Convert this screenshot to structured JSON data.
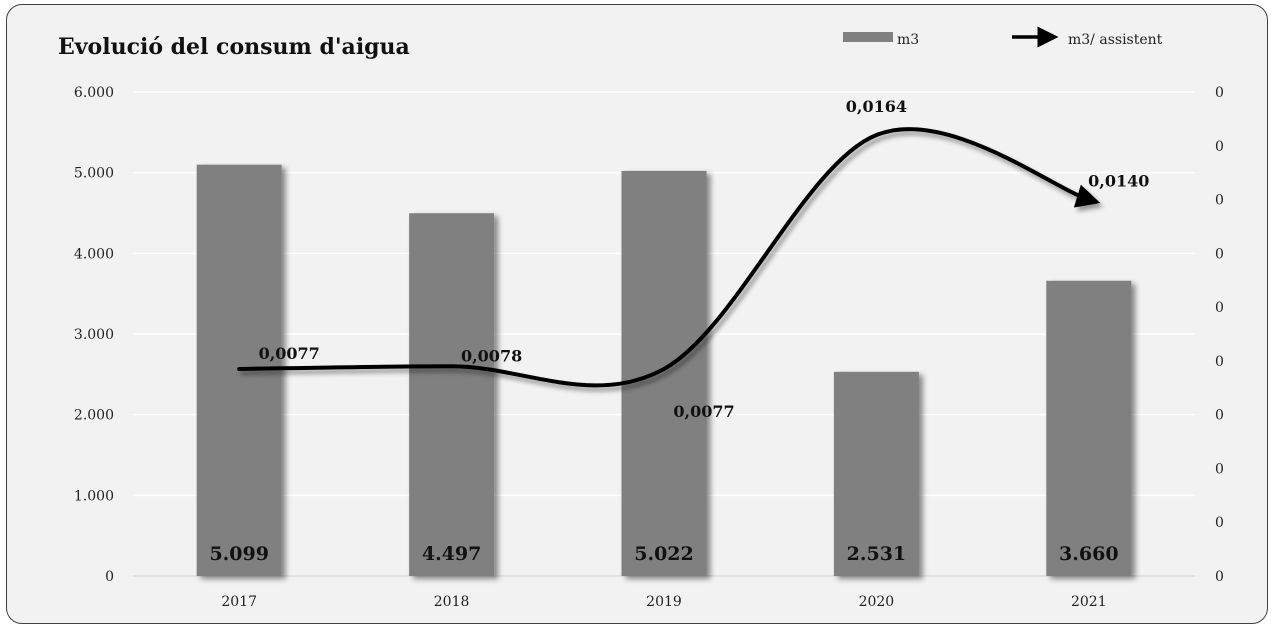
{
  "chart_data": {
    "type": "bar",
    "title": "Evolució del consum d'aigua",
    "categories": [
      "2017",
      "2018",
      "2019",
      "2020",
      "2021"
    ],
    "series": [
      {
        "name": "m3",
        "type": "bar",
        "axis": "left",
        "values": [
          5099,
          4497,
          5022,
          2531,
          3660
        ],
        "labels": [
          "5.099",
          "4.497",
          "5.022",
          "2.531",
          "3.660"
        ]
      },
      {
        "name": "m3/ assistent",
        "type": "line",
        "axis": "right",
        "values": [
          0.0077,
          0.0078,
          0.0077,
          0.0164,
          0.014
        ],
        "labels": [
          "0,0077",
          "0,0078",
          "0,0077",
          "0,0164",
          "0,0140"
        ]
      }
    ],
    "ylim": [
      0,
      6000
    ],
    "yticks": [
      "0",
      "1.000",
      "2.000",
      "3.000",
      "4.000",
      "5.000",
      "6.000"
    ],
    "y2ticks": [
      "0",
      "0",
      "0",
      "0",
      "0",
      "0",
      "0",
      "0",
      "0",
      "0"
    ],
    "y2lim": [
      0,
      0.018
    ],
    "grid": true,
    "legend": "top-right",
    "colors": {
      "bar": "#808080",
      "line": "#000000",
      "background": "#f2f2f2",
      "grid": "#ffffff"
    }
  }
}
